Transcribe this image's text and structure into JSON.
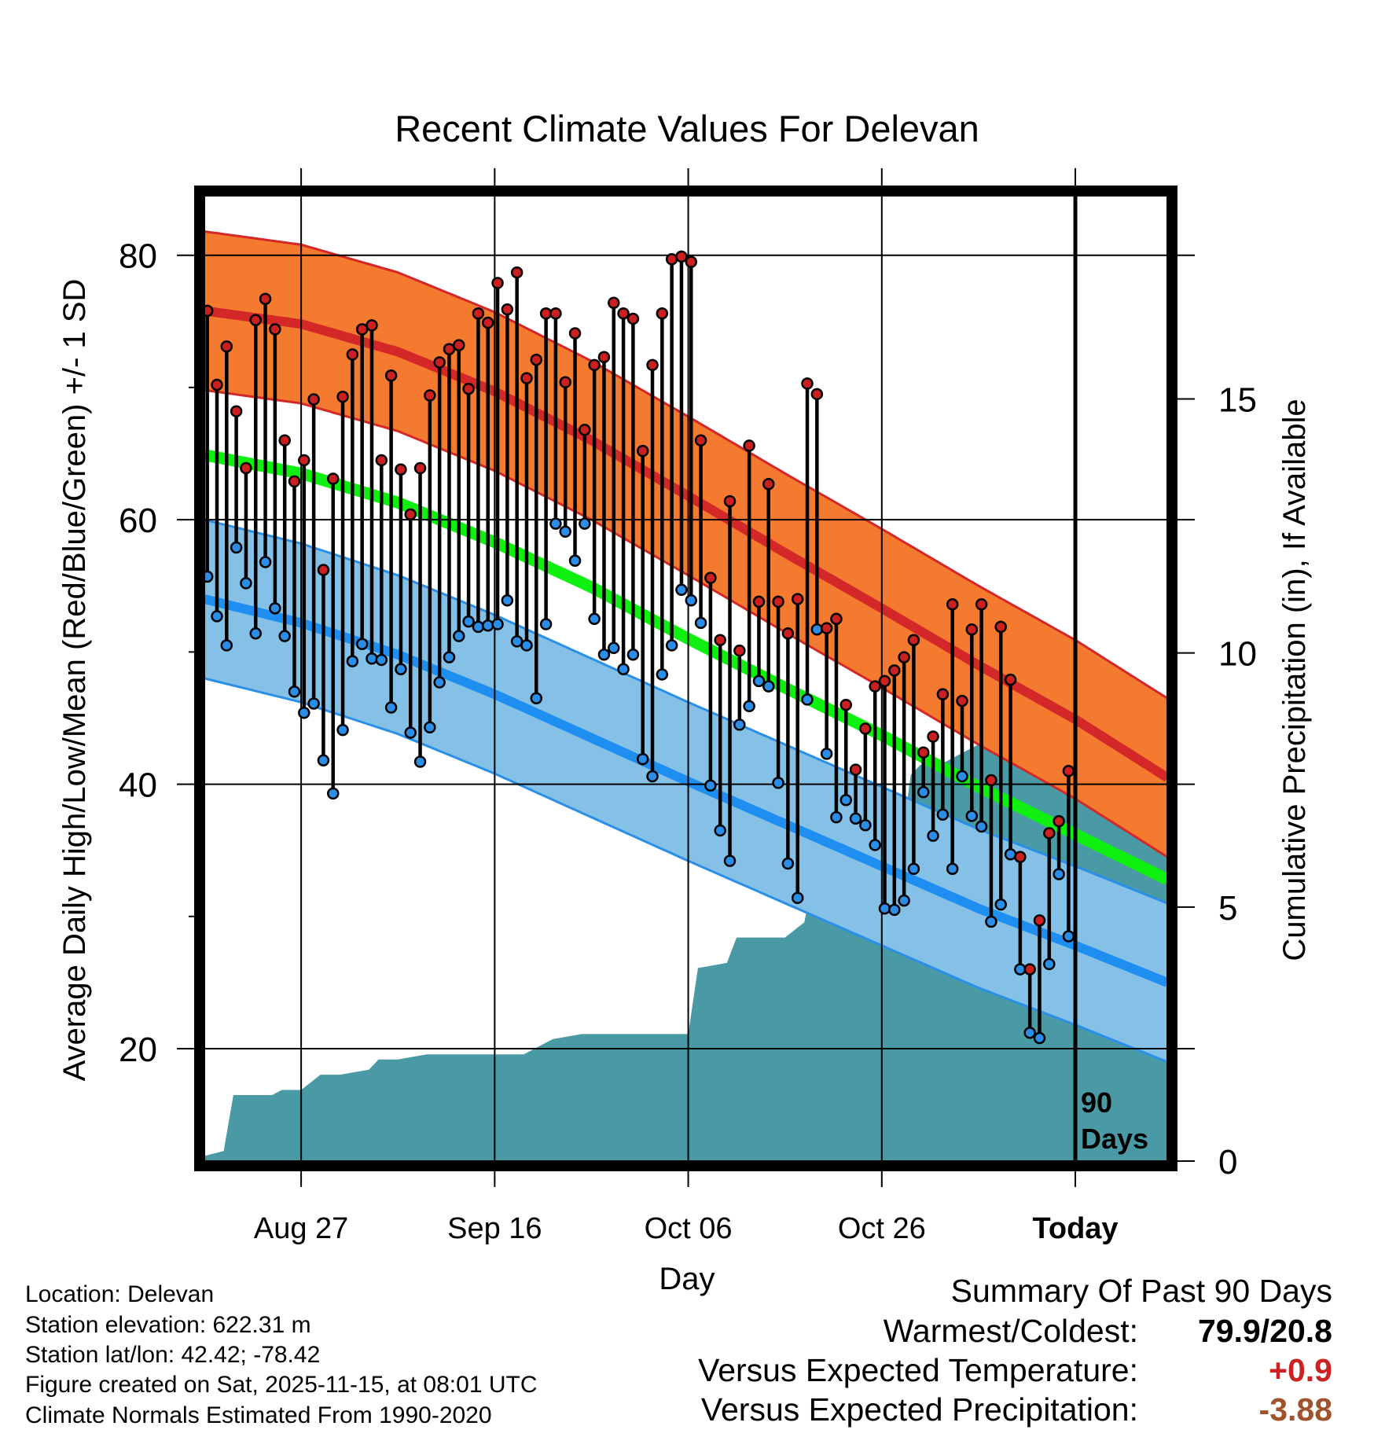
{
  "chart_data": {
    "type": "climate-range",
    "title": "Recent Climate Values For Delevan",
    "xlabel": "Day",
    "ylabel_left": "Average Daily High/Low/Mean (Red/Blue/Green) +/- 1 SD",
    "ylabel_right": "Cumulative Precipitation (in), If Available",
    "x_ticks": [
      {
        "day": 10,
        "label": "Aug 27"
      },
      {
        "day": 30,
        "label": "Sep 16"
      },
      {
        "day": 50,
        "label": "Oct 06"
      },
      {
        "day": 70,
        "label": "Oct 26"
      },
      {
        "day": 90,
        "label": "Today"
      }
    ],
    "x_range": [
      0,
      99.5
    ],
    "y_left_range": [
      11.5,
      84.5
    ],
    "y_left_ticks": [
      20,
      40,
      60,
      80
    ],
    "y_right_range": [
      0,
      19
    ],
    "y_right_ticks": [
      0,
      5,
      10,
      15
    ],
    "today_label": [
      "90",
      "Days"
    ],
    "normals": {
      "days": [
        0,
        10,
        20,
        30,
        40,
        50,
        60,
        70,
        80,
        90,
        99.5
      ],
      "high_mean": [
        75.8,
        74.8,
        72.7,
        69.7,
        66.0,
        61.8,
        57.5,
        53.3,
        49.0,
        44.9,
        40.5
      ],
      "high_sd": 6.0,
      "low_mean": [
        54.0,
        52.2,
        49.8,
        46.8,
        43.5,
        40.2,
        37.0,
        33.8,
        30.6,
        27.8,
        25.0
      ],
      "low_sd": 6.0,
      "avg_mean": [
        64.9,
        63.5,
        61.3,
        58.3,
        54.9,
        51.0,
        47.3,
        43.7,
        39.8,
        36.2,
        32.8
      ]
    },
    "observed": {
      "highs": [
        75.8,
        70.2,
        73.1,
        68.2,
        63.9,
        75.1,
        76.7,
        74.4,
        66.0,
        62.9,
        64.5,
        69.1,
        56.2,
        63.1,
        69.3,
        72.5,
        74.4,
        74.7,
        64.5,
        70.9,
        63.8,
        60.4,
        63.9,
        69.4,
        71.9,
        72.9,
        73.2,
        69.9,
        75.6,
        74.9,
        77.9,
        75.9,
        78.7,
        70.7,
        72.1,
        75.6,
        75.6,
        70.4,
        74.1,
        66.8,
        71.7,
        72.3,
        76.4,
        75.6,
        75.2,
        65.2,
        71.7,
        75.6,
        79.7,
        79.9,
        79.5,
        66.0,
        55.6,
        50.9,
        61.4,
        50.1,
        65.6,
        53.8,
        62.7,
        53.8,
        51.4,
        54.0,
        70.3,
        69.5,
        51.8,
        52.5,
        46.0,
        41.1,
        44.2,
        47.4,
        47.8,
        48.6,
        49.6,
        50.9,
        42.4,
        43.6,
        46.8,
        53.6,
        46.3,
        51.7,
        53.6,
        40.3,
        51.9,
        47.9,
        34.5,
        26.0,
        29.7,
        36.3,
        37.2,
        41.0
      ],
      "lows": [
        55.7,
        52.7,
        50.5,
        57.9,
        55.2,
        51.4,
        56.8,
        53.3,
        51.2,
        47.0,
        45.4,
        46.1,
        41.8,
        39.3,
        44.1,
        49.3,
        50.6,
        49.5,
        49.4,
        45.8,
        48.7,
        43.9,
        41.7,
        44.3,
        47.7,
        49.6,
        51.2,
        52.3,
        51.9,
        52.0,
        52.1,
        53.9,
        50.8,
        50.5,
        46.5,
        52.1,
        59.7,
        59.1,
        56.9,
        59.7,
        52.5,
        49.8,
        50.3,
        48.7,
        49.8,
        41.9,
        40.6,
        48.3,
        50.5,
        54.7,
        53.9,
        52.2,
        39.9,
        36.5,
        34.2,
        44.5,
        45.9,
        47.8,
        47.4,
        40.1,
        34.0,
        31.4,
        46.4,
        51.7,
        42.3,
        37.5,
        38.8,
        37.4,
        36.9,
        35.4,
        30.6,
        30.5,
        31.2,
        33.6,
        39.4,
        36.1,
        37.7,
        33.6,
        40.6,
        37.6,
        36.8,
        29.6,
        30.9,
        34.7,
        26.0,
        21.2,
        20.8,
        26.4,
        33.2,
        28.5
      ]
    },
    "precip": {
      "days": [
        0,
        2,
        3,
        7,
        8,
        10,
        12,
        14,
        17,
        18,
        20,
        23,
        27,
        33,
        36,
        39,
        41,
        44,
        50,
        51,
        54,
        55,
        58,
        60,
        62,
        63,
        65,
        67,
        70,
        72,
        73,
        74,
        76,
        78,
        80,
        82,
        84,
        86,
        88,
        90,
        99.5
      ],
      "values": [
        0.1,
        0.2,
        1.3,
        1.3,
        1.4,
        1.4,
        1.7,
        1.7,
        1.8,
        2.0,
        2.0,
        2.1,
        2.1,
        2.1,
        2.4,
        2.5,
        2.5,
        2.5,
        2.5,
        3.8,
        3.9,
        4.4,
        4.4,
        4.4,
        4.7,
        5.7,
        5.8,
        6.1,
        6.1,
        6.2,
        7.6,
        7.8,
        7.8,
        8.0,
        8.2,
        8.4,
        8.4,
        8.5,
        8.5,
        8.5,
        8.5
      ]
    }
  },
  "info": {
    "location": "Location: Delevan",
    "elevation": "Station elevation: 622.31 m",
    "latlon": "Station lat/lon: 42.42; -78.42",
    "created": "Figure created on Sat, 2025-11-15, at 08:01 UTC",
    "normals_period": "Climate Normals Estimated From 1990-2020"
  },
  "summary": {
    "heading": "Summary Of Past 90 Days",
    "warm_cold_label": "Warmest/Coldest:",
    "warm_cold_value": "79.9/20.8",
    "temp_label": "Versus Expected Temperature:",
    "temp_value": "+0.9",
    "precip_label": "Versus Expected Precipitation:",
    "precip_value": "-3.88"
  },
  "colors": {
    "high_band": "#f47a30",
    "high_line": "#d42828",
    "high_edge": "#d42828",
    "low_band": "#85c1e6",
    "low_line": "#1e8ff0",
    "low_edge": "#2a8fe6",
    "avg_line": "#10f010",
    "overlap": "#a01010",
    "precip": "#4a9aa6",
    "high_marker": "#cc2020",
    "low_marker": "#2a8ee8",
    "temp_value": "#cc2222",
    "precip_value": "#a0522d"
  }
}
